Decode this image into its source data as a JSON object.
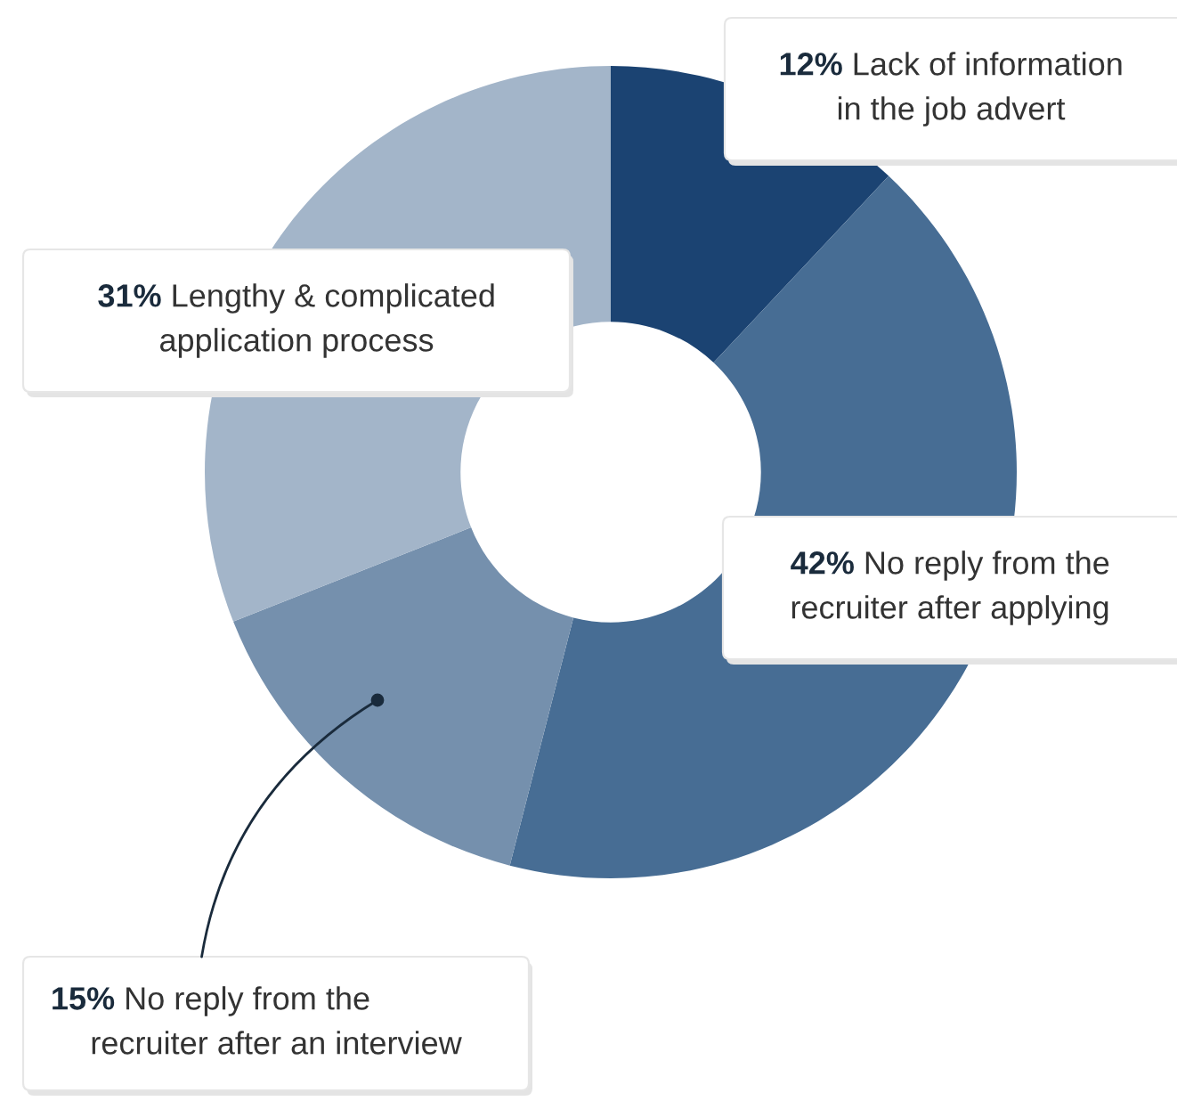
{
  "chart_data": {
    "type": "donut",
    "categories": [
      "Lack of information\nin the job advert",
      "No reply from the\nrecruiter after applying",
      "No reply from the\nrecruiter after an interview",
      "Lengthy & complicated\napplication process"
    ],
    "values": [
      12,
      42,
      15,
      31
    ],
    "value_labels": [
      "12%",
      "42%",
      "15%",
      "31%"
    ],
    "colors": [
      "#1b4372",
      "#476d94",
      "#7590ad",
      "#a3b5c9"
    ],
    "legend": false
  }
}
